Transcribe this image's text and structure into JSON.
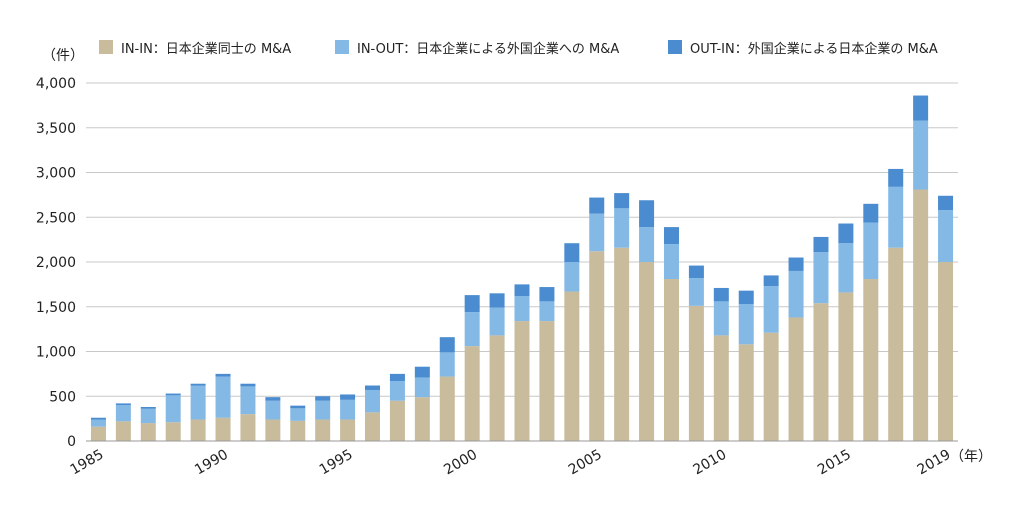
{
  "chart_data": {
    "type": "bar",
    "stacked": true,
    "title": "",
    "xlabel": "（年）",
    "ylabel": "（件）",
    "ylim": [
      0,
      4000
    ],
    "yticks": [
      0,
      500,
      1000,
      1500,
      2000,
      2500,
      3000,
      3500,
      4000
    ],
    "ytick_labels": [
      "0",
      "500",
      "1,000",
      "1,500",
      "2,000",
      "2,500",
      "3,000",
      "3,500",
      "4,000"
    ],
    "xtick_labels": [
      "1985",
      "1990",
      "1995",
      "2000",
      "2005",
      "2010",
      "2015",
      "2019"
    ],
    "grid": "horizontal",
    "legend_position": "top",
    "categories": [
      "1985",
      "1986",
      "1987",
      "1988",
      "1989",
      "1990",
      "1991",
      "1992",
      "1993",
      "1994",
      "1995",
      "1996",
      "1997",
      "1998",
      "1999",
      "2000",
      "2001",
      "2002",
      "2003",
      "2004",
      "2005",
      "2006",
      "2007",
      "2008",
      "2009",
      "2010",
      "2011",
      "2012",
      "2013",
      "2014",
      "2015",
      "2016",
      "2017",
      "2018",
      "2019"
    ],
    "series": [
      {
        "name": "IN-IN：日本企業同士の M&A",
        "color": "#c9bc9c",
        "values": [
          160,
          220,
          200,
          210,
          240,
          260,
          300,
          240,
          225,
          240,
          240,
          320,
          450,
          490,
          720,
          1060,
          1180,
          1340,
          1340,
          1670,
          2120,
          2160,
          2000,
          1810,
          1510,
          1180,
          1080,
          1210,
          1380,
          1540,
          1660,
          1810,
          2160,
          2810,
          2000
        ]
      },
      {
        "name": "IN-OUT：日本企業による外国企業への M&A",
        "color": "#84b9e6",
        "values": [
          80,
          180,
          160,
          300,
          380,
          460,
          310,
          210,
          140,
          210,
          220,
          250,
          220,
          220,
          270,
          380,
          310,
          280,
          220,
          330,
          420,
          440,
          390,
          390,
          310,
          380,
          450,
          520,
          520,
          570,
          550,
          630,
          680,
          770,
          580
        ]
      },
      {
        "name": "OUT-IN：外国企業による日本企業の M&A",
        "color": "#4a8ccf",
        "values": [
          20,
          20,
          20,
          20,
          20,
          30,
          30,
          40,
          30,
          50,
          60,
          50,
          80,
          120,
          170,
          190,
          160,
          130,
          160,
          210,
          180,
          170,
          300,
          190,
          140,
          150,
          150,
          120,
          150,
          170,
          220,
          210,
          200,
          280,
          160
        ]
      }
    ]
  }
}
